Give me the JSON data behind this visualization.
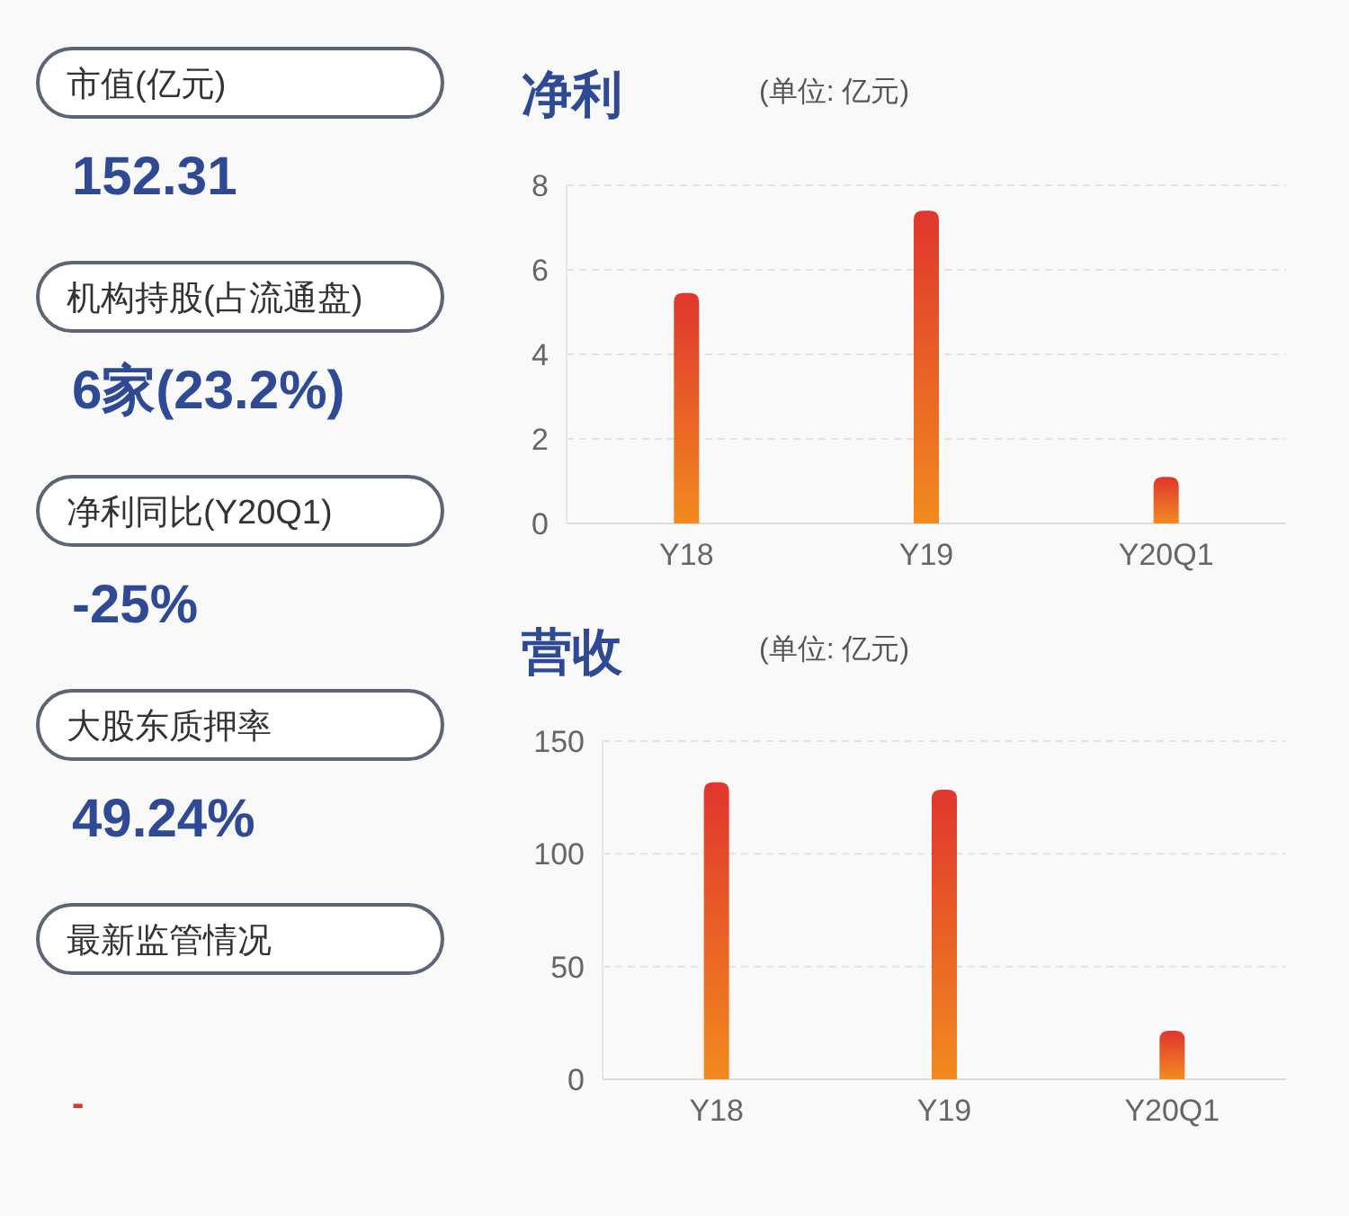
{
  "chart_data": [
    {
      "type": "other",
      "annotations": [
        "市值(亿元)",
        "152.31",
        "机构持股(占流通盘)",
        "6家(23.2%)",
        "净利同比(Y20Q1)",
        "-25%",
        "大股东质押率",
        "49.24%",
        "最新监管情况",
        "-"
      ]
    },
    {
      "type": "bar",
      "title": "净利",
      "subtitle": "(单位: 亿元)",
      "categories": [
        "Y18",
        "Y19",
        "Y20Q1"
      ],
      "values": [
        5.45,
        7.4,
        1.1
      ],
      "color": "#e0362e",
      "ylim": [
        0,
        8
      ],
      "yticks": [
        0,
        2,
        4,
        6,
        8
      ],
      "grid": "y"
    },
    {
      "type": "bar",
      "title": "营收",
      "subtitle": "(单位: 亿元)",
      "categories": [
        "Y18",
        "Y19",
        "Y20Q1"
      ],
      "values": [
        131.7,
        128.5,
        21.5
      ],
      "color": "#e0362e",
      "ylim": [
        0,
        150
      ],
      "yticks": [
        0,
        50,
        100,
        150
      ],
      "grid": "y"
    }
  ]
}
